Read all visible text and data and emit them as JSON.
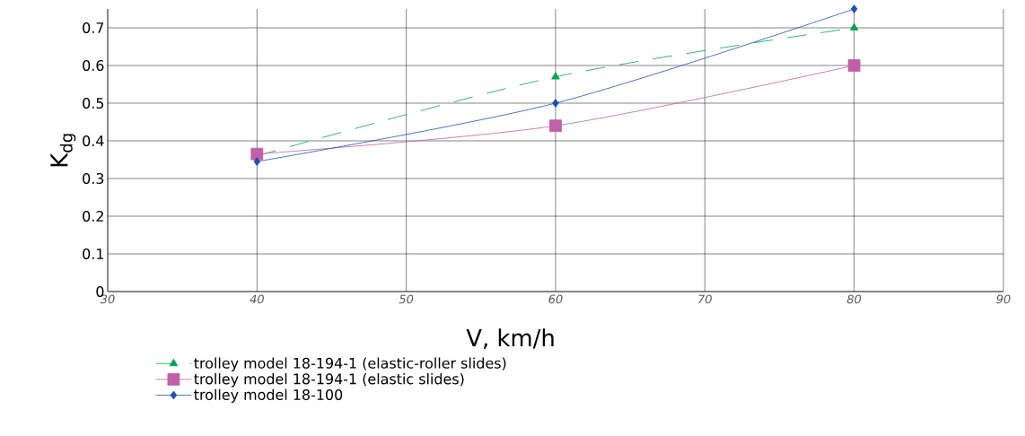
{
  "chart_data": {
    "type": "line",
    "xlabel": "V, km/h",
    "ylabel": "K$_{dg}$",
    "x": [
      40,
      60,
      80
    ],
    "series": [
      {
        "name": "trolley model 18-194-1 (elastic-roller slides)",
        "color": "#00a650",
        "values": [
          0.36,
          0.57,
          0.7
        ],
        "marker": "triangle",
        "line_style": "dashed"
      },
      {
        "name": "trolley model 18-194-1 (elastic slides)",
        "color": "#c060a8",
        "values": [
          0.365,
          0.44,
          0.6
        ],
        "marker": "square",
        "line_style": "solid"
      },
      {
        "name": "trolley model 18-100",
        "color": "#2050b0",
        "values": [
          0.345,
          0.5,
          0.75
        ],
        "marker": "diamond",
        "line_style": "solid"
      }
    ],
    "xlim": [
      30,
      90
    ],
    "xticks": [
      30,
      40,
      50,
      60,
      70,
      80,
      90
    ],
    "ylim": [
      0,
      0.75
    ],
    "yticks": [
      0,
      0.1,
      0.2,
      0.3,
      0.4,
      0.5,
      0.6,
      0.7
    ],
    "grid": true,
    "legend": "bottom"
  }
}
